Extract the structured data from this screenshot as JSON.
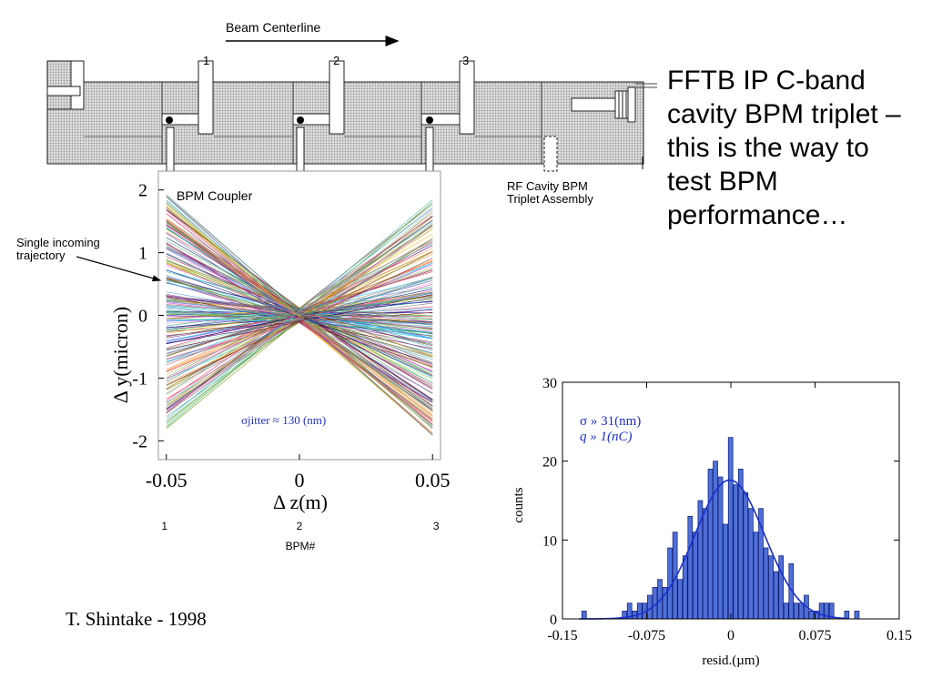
{
  "slide": {
    "side_text": "FFTB IP C-band cavity BPM triplet – this is the way to test BPM performance…",
    "credit": "T. Shintake - 1998"
  },
  "diagram": {
    "beam_label": "Beam Centerline",
    "bpm_numbers": [
      "1",
      "2",
      "3"
    ],
    "assembly_label_line1": "RF Cavity BPM",
    "assembly_label_line2": "Triplet Assembly"
  },
  "chart_data": [
    {
      "type": "line",
      "description_labels": {
        "coupler_label": "BPM Coupler",
        "incoming_label_line1": "Single incoming",
        "incoming_label_line2": "trajectory",
        "jitter_label": "σjitter ≈ 130 (nm)"
      },
      "xlabel": "Δ z(m)",
      "ylabel": "Δ y(micron)",
      "xlim": [
        -0.053,
        0.053
      ],
      "ylim": [
        -2.3,
        2.3
      ],
      "x_ticks": [
        -0.05,
        0,
        0.05
      ],
      "x_tick_labels": [
        "-0.05",
        "0",
        "0.05"
      ],
      "y_ticks": [
        2,
        1,
        0,
        -1,
        -2
      ],
      "y_tick_labels": [
        "2",
        "1",
        "0",
        "-1",
        "-2"
      ],
      "bpm_axis_positions": [
        -0.05,
        0,
        0.05
      ],
      "bpm_axis_labels": [
        "1",
        "2",
        "3"
      ],
      "bpm_axis_title": "BPM#",
      "pivot": {
        "x": 0,
        "y": 0
      },
      "trajectory_count": 220,
      "max_end_amplitude": 1.9,
      "series_colors": [
        "#e6194b",
        "#3cb44b",
        "#4363d8",
        "#f58231",
        "#911eb4",
        "#46a0c8",
        "#d633c6",
        "#9bbf2d",
        "#e89ab0",
        "#1f9e89",
        "#a0785a",
        "#800000",
        "#7fd6a0",
        "#808000",
        "#000075",
        "#707070",
        "#ffb000",
        "#00b8ff"
      ]
    },
    {
      "type": "bar",
      "xlabel": "resid.(µm)",
      "ylabel": "counts",
      "xlim": [
        -0.15,
        0.15
      ],
      "ylim": [
        0,
        30
      ],
      "x_ticks": [
        -0.15,
        -0.075,
        0,
        0.075,
        0.15
      ],
      "x_tick_labels": [
        "-0.15",
        "-0.075",
        "0",
        "0.075",
        "0.15"
      ],
      "y_ticks": [
        0,
        10,
        20,
        30
      ],
      "y_tick_labels": [
        "0",
        "10",
        "20",
        "30"
      ],
      "annotation_sigma": "σ » 31(nm)",
      "annotation_q": "q » 1(nC)",
      "bin_width": 0.0045,
      "bins_x": [
        -0.1305,
        -0.0945,
        -0.09,
        -0.0855,
        -0.081,
        -0.0765,
        -0.072,
        -0.0675,
        -0.063,
        -0.0585,
        -0.054,
        -0.0495,
        -0.045,
        -0.0405,
        -0.036,
        -0.0315,
        -0.027,
        -0.0225,
        -0.018,
        -0.0135,
        -0.009,
        -0.0045,
        0,
        0.0045,
        0.009,
        0.0135,
        0.018,
        0.0225,
        0.027,
        0.0315,
        0.036,
        0.0405,
        0.045,
        0.0495,
        0.054,
        0.0585,
        0.063,
        0.0675,
        0.072,
        0.0765,
        0.081,
        0.0855,
        0.09,
        0.1035,
        0.1125
      ],
      "counts": [
        1,
        1,
        2,
        1,
        2,
        2,
        3,
        4,
        5,
        4,
        9,
        11,
        5,
        8,
        13,
        11,
        15,
        14,
        19,
        20,
        18,
        12,
        23,
        17,
        19,
        16,
        14,
        11,
        14,
        9,
        8,
        6,
        8,
        2,
        7,
        2,
        2,
        3,
        1,
        1,
        2,
        2,
        2,
        1,
        1
      ],
      "fit": {
        "type": "gaussian",
        "amplitude": 17.6,
        "mean": -0.001,
        "sigma": 0.031
      },
      "bar_color": "#4f6fd8",
      "fit_color": "#1a2ecf"
    }
  ]
}
